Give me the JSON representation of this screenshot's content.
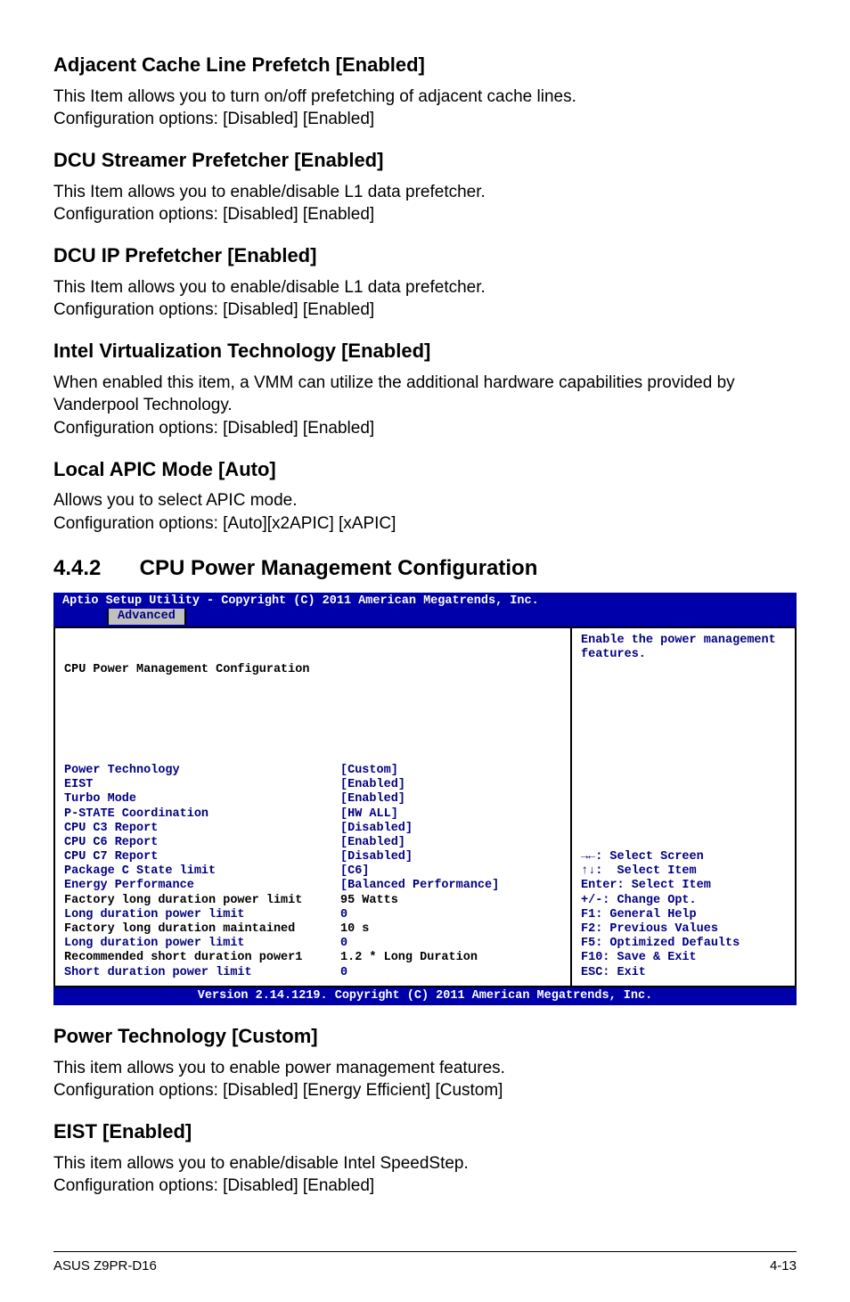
{
  "sections": {
    "acl": {
      "title": "Adjacent Cache Line Prefetch [Enabled]",
      "body": "This Item allows you to turn on/off prefetching of adjacent cache lines.\nConfiguration options: [Disabled] [Enabled]"
    },
    "dcuS": {
      "title": "DCU Streamer Prefetcher [Enabled]",
      "body": "This Item allows you to enable/disable L1 data prefetcher.\nConfiguration options: [Disabled] [Enabled]"
    },
    "dcuIP": {
      "title": "DCU IP Prefetcher [Enabled]",
      "body": "This Item allows you to enable/disable L1 data prefetcher.\nConfiguration options: [Disabled] [Enabled]"
    },
    "ivt": {
      "title": "Intel Virtualization Technology [Enabled]",
      "body": "When enabled this item, a VMM can utilize the additional hardware capabilities provided by Vanderpool Technology.\nConfiguration options: [Disabled] [Enabled]"
    },
    "apic": {
      "title": "Local APIC Mode [Auto]",
      "body": "Allows you to select APIC mode.\nConfiguration options: [Auto][x2APIC] [xAPIC]"
    },
    "ptech": {
      "title": "Power Technology [Custom]",
      "body": "This item allows you to enable power management features.\nConfiguration options: [Disabled] [Energy Efficient] [Custom]"
    },
    "eist": {
      "title": "EIST [Enabled]",
      "body": "This item allows you to enable/disable Intel SpeedStep.\nConfiguration options: [Disabled] [Enabled]"
    }
  },
  "chapter": {
    "num": "4.4.2",
    "title": "CPU Power Management Configuration"
  },
  "bios": {
    "header": "Aptio Setup Utility - Copyright (C) 2011 American Megatrends, Inc.",
    "tab": "Advanced",
    "group": "CPU Power Management Configuration",
    "rows": [
      {
        "label": "Power Technology",
        "value": "[Custom]",
        "black": false
      },
      {
        "label": "EIST",
        "value": "[Enabled]",
        "black": false
      },
      {
        "label": "Turbo Mode",
        "value": "[Enabled]",
        "black": false
      },
      {
        "label": "P-STATE Coordination",
        "value": "[HW ALL]",
        "black": false
      },
      {
        "label": "CPU C3 Report",
        "value": "[Disabled]",
        "black": false
      },
      {
        "label": "CPU C6 Report",
        "value": "[Enabled]",
        "black": false
      },
      {
        "label": "CPU C7 Report",
        "value": "[Disabled]",
        "black": false
      },
      {
        "label": "Package C State limit",
        "value": "[C6]",
        "black": false
      },
      {
        "label": "Energy Performance",
        "value": "[Balanced Performance]",
        "black": false
      },
      {
        "label": "Factory long duration power limit",
        "value": "95 Watts",
        "black": true
      },
      {
        "label": "Long duration power limit",
        "value": "0",
        "black": false
      },
      {
        "label": "Factory long duration maintained",
        "value": "10 s",
        "black": true
      },
      {
        "label": "Long duration power limit",
        "value": "0",
        "black": false
      },
      {
        "label": "Recommended short duration power1",
        "value": "1.2 * Long Duration",
        "black": true
      },
      {
        "label": "Short duration power limit",
        "value": "0",
        "black": false
      }
    ],
    "help": "Enable the power management features.",
    "nav": "→←: Select Screen\n↑↓:  Select Item\nEnter: Select Item\n+/-: Change Opt.\nF1: General Help\nF2: Previous Values\nF5: Optimized Defaults\nF10: Save & Exit\nESC: Exit",
    "footer": "Version 2.14.1219. Copyright (C) 2011 American Megatrends, Inc."
  },
  "page": {
    "model": "ASUS Z9PR-D16",
    "num": "4-13"
  }
}
